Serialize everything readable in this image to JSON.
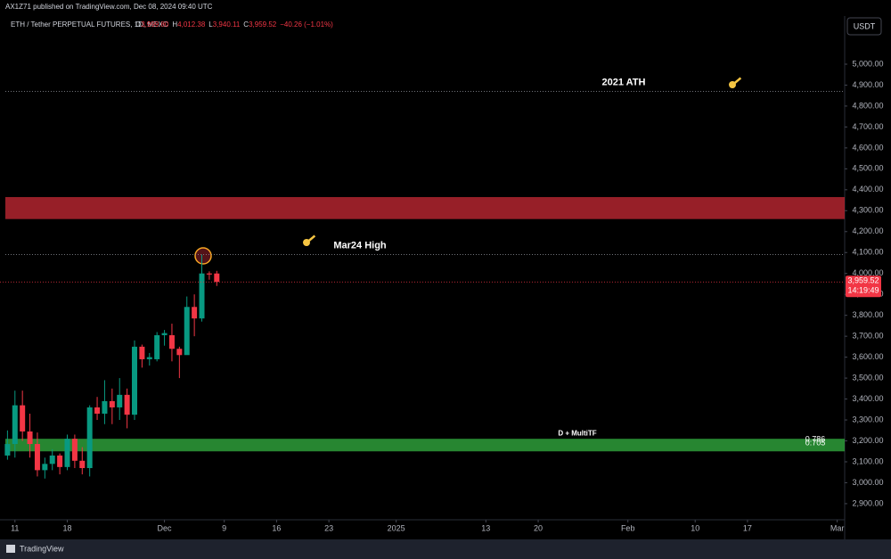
{
  "header": {
    "publisher": "AX1Z71 published on TradingView.com, Dec 08, 2024 09:40 UTC",
    "currency_button": "USDT",
    "footer_brand": "TradingView"
  },
  "chart_data": {
    "type": "candlestick",
    "title": "ETH / Tether PERPETUAL FUTURES, 1D, MEXC",
    "legend_values": [
      {
        "label": "O",
        "value": "3,999.80"
      },
      {
        "label": "H",
        "value": "4,012.38"
      },
      {
        "label": "L",
        "value": "3,940.11"
      },
      {
        "label": "C",
        "value": "3,959.52"
      }
    ],
    "change": "−40.26 (−1.01%)",
    "x": [
      "2024-11-10",
      "2024-11-11",
      "2024-11-12",
      "2024-11-13",
      "2024-11-14",
      "2024-11-15",
      "2024-11-16",
      "2024-11-17",
      "2024-11-18",
      "2024-11-19",
      "2024-11-20",
      "2024-11-21",
      "2024-11-22",
      "2024-11-23",
      "2024-11-24",
      "2024-11-25",
      "2024-11-26",
      "2024-11-27",
      "2024-11-28",
      "2024-11-29",
      "2024-11-30",
      "2024-12-01",
      "2024-12-02",
      "2024-12-03",
      "2024-12-04",
      "2024-12-05",
      "2024-12-06",
      "2024-12-07",
      "2024-12-08"
    ],
    "open": [
      3130,
      3185,
      3370,
      3245,
      3185,
      3060,
      3090,
      3130,
      3075,
      3210,
      3105,
      3070,
      3360,
      3330,
      3390,
      3360,
      3420,
      3325,
      3650,
      3590,
      3590,
      3705,
      3705,
      3640,
      3610,
      3840,
      3785,
      4000,
      3999.8
    ],
    "high": [
      3250,
      3440,
      3440,
      3330,
      3240,
      3120,
      3160,
      3140,
      3230,
      3230,
      3170,
      3370,
      3410,
      3490,
      3450,
      3500,
      3450,
      3680,
      3660,
      3620,
      3720,
      3730,
      3760,
      3650,
      3890,
      3900,
      4090,
      4010,
      4012.38
    ],
    "low": [
      3110,
      3120,
      3200,
      3120,
      3030,
      3020,
      3060,
      3040,
      3060,
      3070,
      3040,
      3030,
      3300,
      3280,
      3280,
      3300,
      3260,
      3300,
      3550,
      3560,
      3580,
      3655,
      3580,
      3500,
      3620,
      3700,
      3770,
      3970,
      3940.11
    ],
    "close": [
      3185,
      3370,
      3245,
      3185,
      3060,
      3090,
      3130,
      3075,
      3210,
      3105,
      3070,
      3360,
      3330,
      3390,
      3360,
      3420,
      3325,
      3650,
      3590,
      3600,
      3705,
      3715,
      3640,
      3610,
      3840,
      3785,
      4000,
      3995,
      3959.52
    ],
    "up_color": "#089981",
    "down_color": "#f23645",
    "xlim": [
      "2024-11-09",
      "2025-03-02"
    ],
    "xticks": [
      {
        "value": "2024-11-11",
        "label": "11"
      },
      {
        "value": "2024-11-18",
        "label": "18"
      },
      {
        "value": "2024-12-01",
        "label": "Dec"
      },
      {
        "value": "2024-12-09",
        "label": "9"
      },
      {
        "value": "2024-12-16",
        "label": "16"
      },
      {
        "value": "2024-12-23",
        "label": "23"
      },
      {
        "value": "2025-01-01",
        "label": "2025"
      },
      {
        "value": "2025-01-13",
        "label": "13"
      },
      {
        "value": "2025-01-20",
        "label": "20"
      },
      {
        "value": "2025-02-01",
        "label": "Feb"
      },
      {
        "value": "2025-02-10",
        "label": "10"
      },
      {
        "value": "2025-02-17",
        "label": "17"
      },
      {
        "value": "2025-03-01",
        "label": "Mar"
      }
    ],
    "ylim": [
      2823,
      5230
    ],
    "yticks": [
      {
        "value": 2900,
        "label": "2,900.00"
      },
      {
        "value": 3000,
        "label": "3,000.00"
      },
      {
        "value": 3100,
        "label": "3,100.00"
      },
      {
        "value": 3200,
        "label": "3,200.00"
      },
      {
        "value": 3300,
        "label": "3,300.00"
      },
      {
        "value": 3400,
        "label": "3,400.00"
      },
      {
        "value": 3500,
        "label": "3,500.00"
      },
      {
        "value": 3600,
        "label": "3,600.00"
      },
      {
        "value": 3700,
        "label": "3,700.00"
      },
      {
        "value": 3800,
        "label": "3,800.00"
      },
      {
        "value": 3900,
        "label": "3,900.00"
      },
      {
        "value": 4000,
        "label": "4,000.00"
      },
      {
        "value": 4100,
        "label": "4,100.00"
      },
      {
        "value": 4200,
        "label": "4,200.00"
      },
      {
        "value": 4300,
        "label": "4,300.00"
      },
      {
        "value": 4400,
        "label": "4,400.00"
      },
      {
        "value": 4500,
        "label": "4,500.00"
      },
      {
        "value": 4600,
        "label": "4,600.00"
      },
      {
        "value": 4700,
        "label": "4,700.00"
      },
      {
        "value": 4800,
        "label": "4,800.00"
      },
      {
        "value": 4900,
        "label": "4,900.00"
      },
      {
        "value": 5000,
        "label": "5,000.00"
      }
    ],
    "levels": [
      {
        "label": "2021 ATH",
        "value": 4870
      },
      {
        "label": "Mar24 High",
        "value": 4090
      }
    ],
    "zones": [
      {
        "from": 4260,
        "to": 4365,
        "color": "#b2242f"
      },
      {
        "from": 3150,
        "to": 3210,
        "color": "#2e9e3a",
        "label": "D + MultiTF"
      }
    ],
    "fib_labels": [
      {
        "label": "0.786",
        "value": 3206
      },
      {
        "label": "0.705",
        "value": 3188
      }
    ],
    "last_price": {
      "value": 3959.52,
      "label": "3,959.52",
      "countdown": "14:19:49",
      "color": "#f23645"
    }
  }
}
